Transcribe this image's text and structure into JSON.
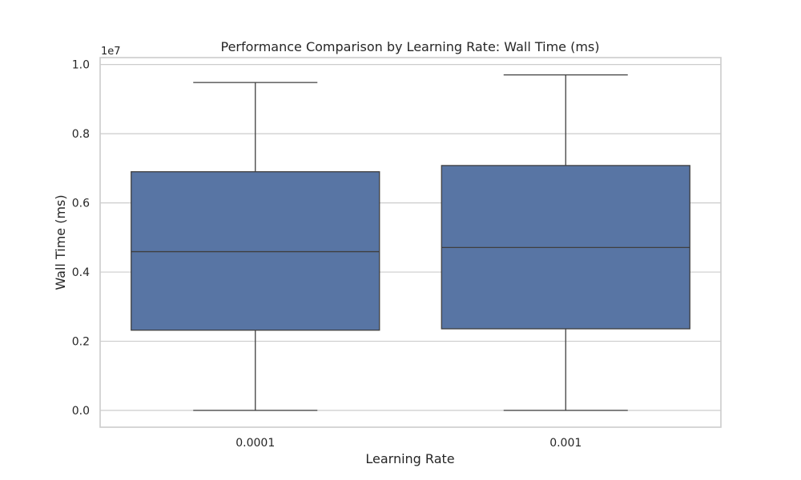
{
  "chart_data": {
    "type": "box",
    "title": "Performance Comparison by Learning Rate: Wall Time (ms)",
    "xlabel": "Learning Rate",
    "ylabel": "Wall Time (ms)",
    "y_offset_label": "1e7",
    "categories": [
      "0.0001",
      "0.001"
    ],
    "y_tick_labels": [
      "0.0",
      "0.2",
      "0.4",
      "0.6",
      "0.8",
      "1.0"
    ],
    "y_ticks": [
      0.0,
      0.2,
      0.4,
      0.6,
      0.8,
      1.0
    ],
    "y_scale_multiplier": 10000000,
    "ylim": [
      -0.0485,
      1.02
    ],
    "grid": "horizontal",
    "box_color": "#5875a4",
    "boxes": [
      {
        "category": "0.0001",
        "min": 0.0,
        "q1": 0.232,
        "median": 0.459,
        "q3": 0.69,
        "max": 0.948
      },
      {
        "category": "0.001",
        "min": 0.0,
        "q1": 0.236,
        "median": 0.471,
        "q3": 0.708,
        "max": 0.97
      }
    ]
  }
}
